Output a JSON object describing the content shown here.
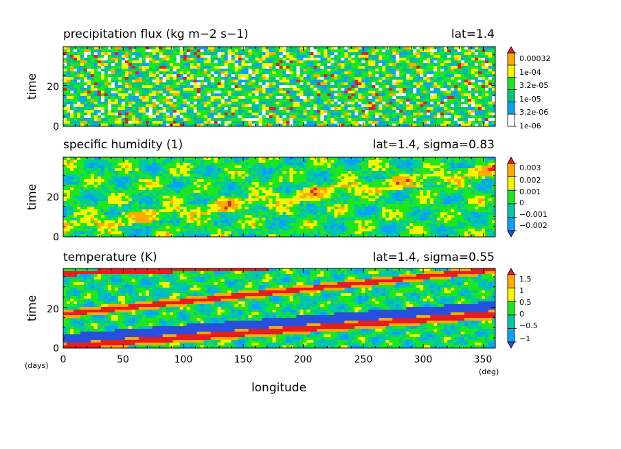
{
  "chart_data": [
    {
      "type": "heatmap",
      "title": "precipitation flux (kg m−2 s−1)",
      "info": "lat=1.4",
      "ylabel": "time",
      "xlim": [
        0,
        360
      ],
      "ylim": [
        0,
        39
      ],
      "y_ticks": [
        "0",
        "20"
      ],
      "colorbar": {
        "levels": [
          "1e-06",
          "3.2e-06",
          "1e-05",
          "3.2e-05",
          "1e-04",
          "0.00032"
        ],
        "colors": [
          "#ffffff",
          "#0aa0ff",
          "#00c878",
          "#1ee61e",
          "#f5f500",
          "#ffaa00",
          "#e61e1e"
        ],
        "extend": "max"
      }
    },
    {
      "type": "heatmap",
      "title": "specific humidity (1)",
      "info": "lat=1.4, sigma=0.83",
      "ylabel": "time",
      "xlim": [
        0,
        360
      ],
      "ylim": [
        0,
        39
      ],
      "y_ticks": [
        "0",
        "20"
      ],
      "colorbar": {
        "levels": [
          "−0.002",
          "−0.001",
          "0",
          "0.001",
          "0.002",
          "0.003"
        ],
        "colors": [
          "#2850dc",
          "#0aa0ff",
          "#00c8a0",
          "#1ee61e",
          "#f5f500",
          "#ffaa00",
          "#e61e1e"
        ],
        "extend": "both"
      }
    },
    {
      "type": "heatmap",
      "title": "temperature (K)",
      "info": "lat=1.4, sigma=0.55",
      "ylabel": "time",
      "xlabel": "longitude",
      "xlim": [
        0,
        360
      ],
      "ylim": [
        0,
        39
      ],
      "x_ticks": [
        "0",
        "50",
        "100",
        "150",
        "200",
        "250",
        "300",
        "350"
      ],
      "y_ticks": [
        "0",
        "20"
      ],
      "x_unit": "(deg)",
      "y_unit": "(days)",
      "colorbar": {
        "levels": [
          "−1",
          "−0.5",
          "0",
          "0.5",
          "1",
          "1.5"
        ],
        "colors": [
          "#2850dc",
          "#0aa0ff",
          "#00c8a0",
          "#1ee61e",
          "#f5f500",
          "#ffaa00",
          "#e61e1e"
        ],
        "extend": "both"
      }
    }
  ]
}
